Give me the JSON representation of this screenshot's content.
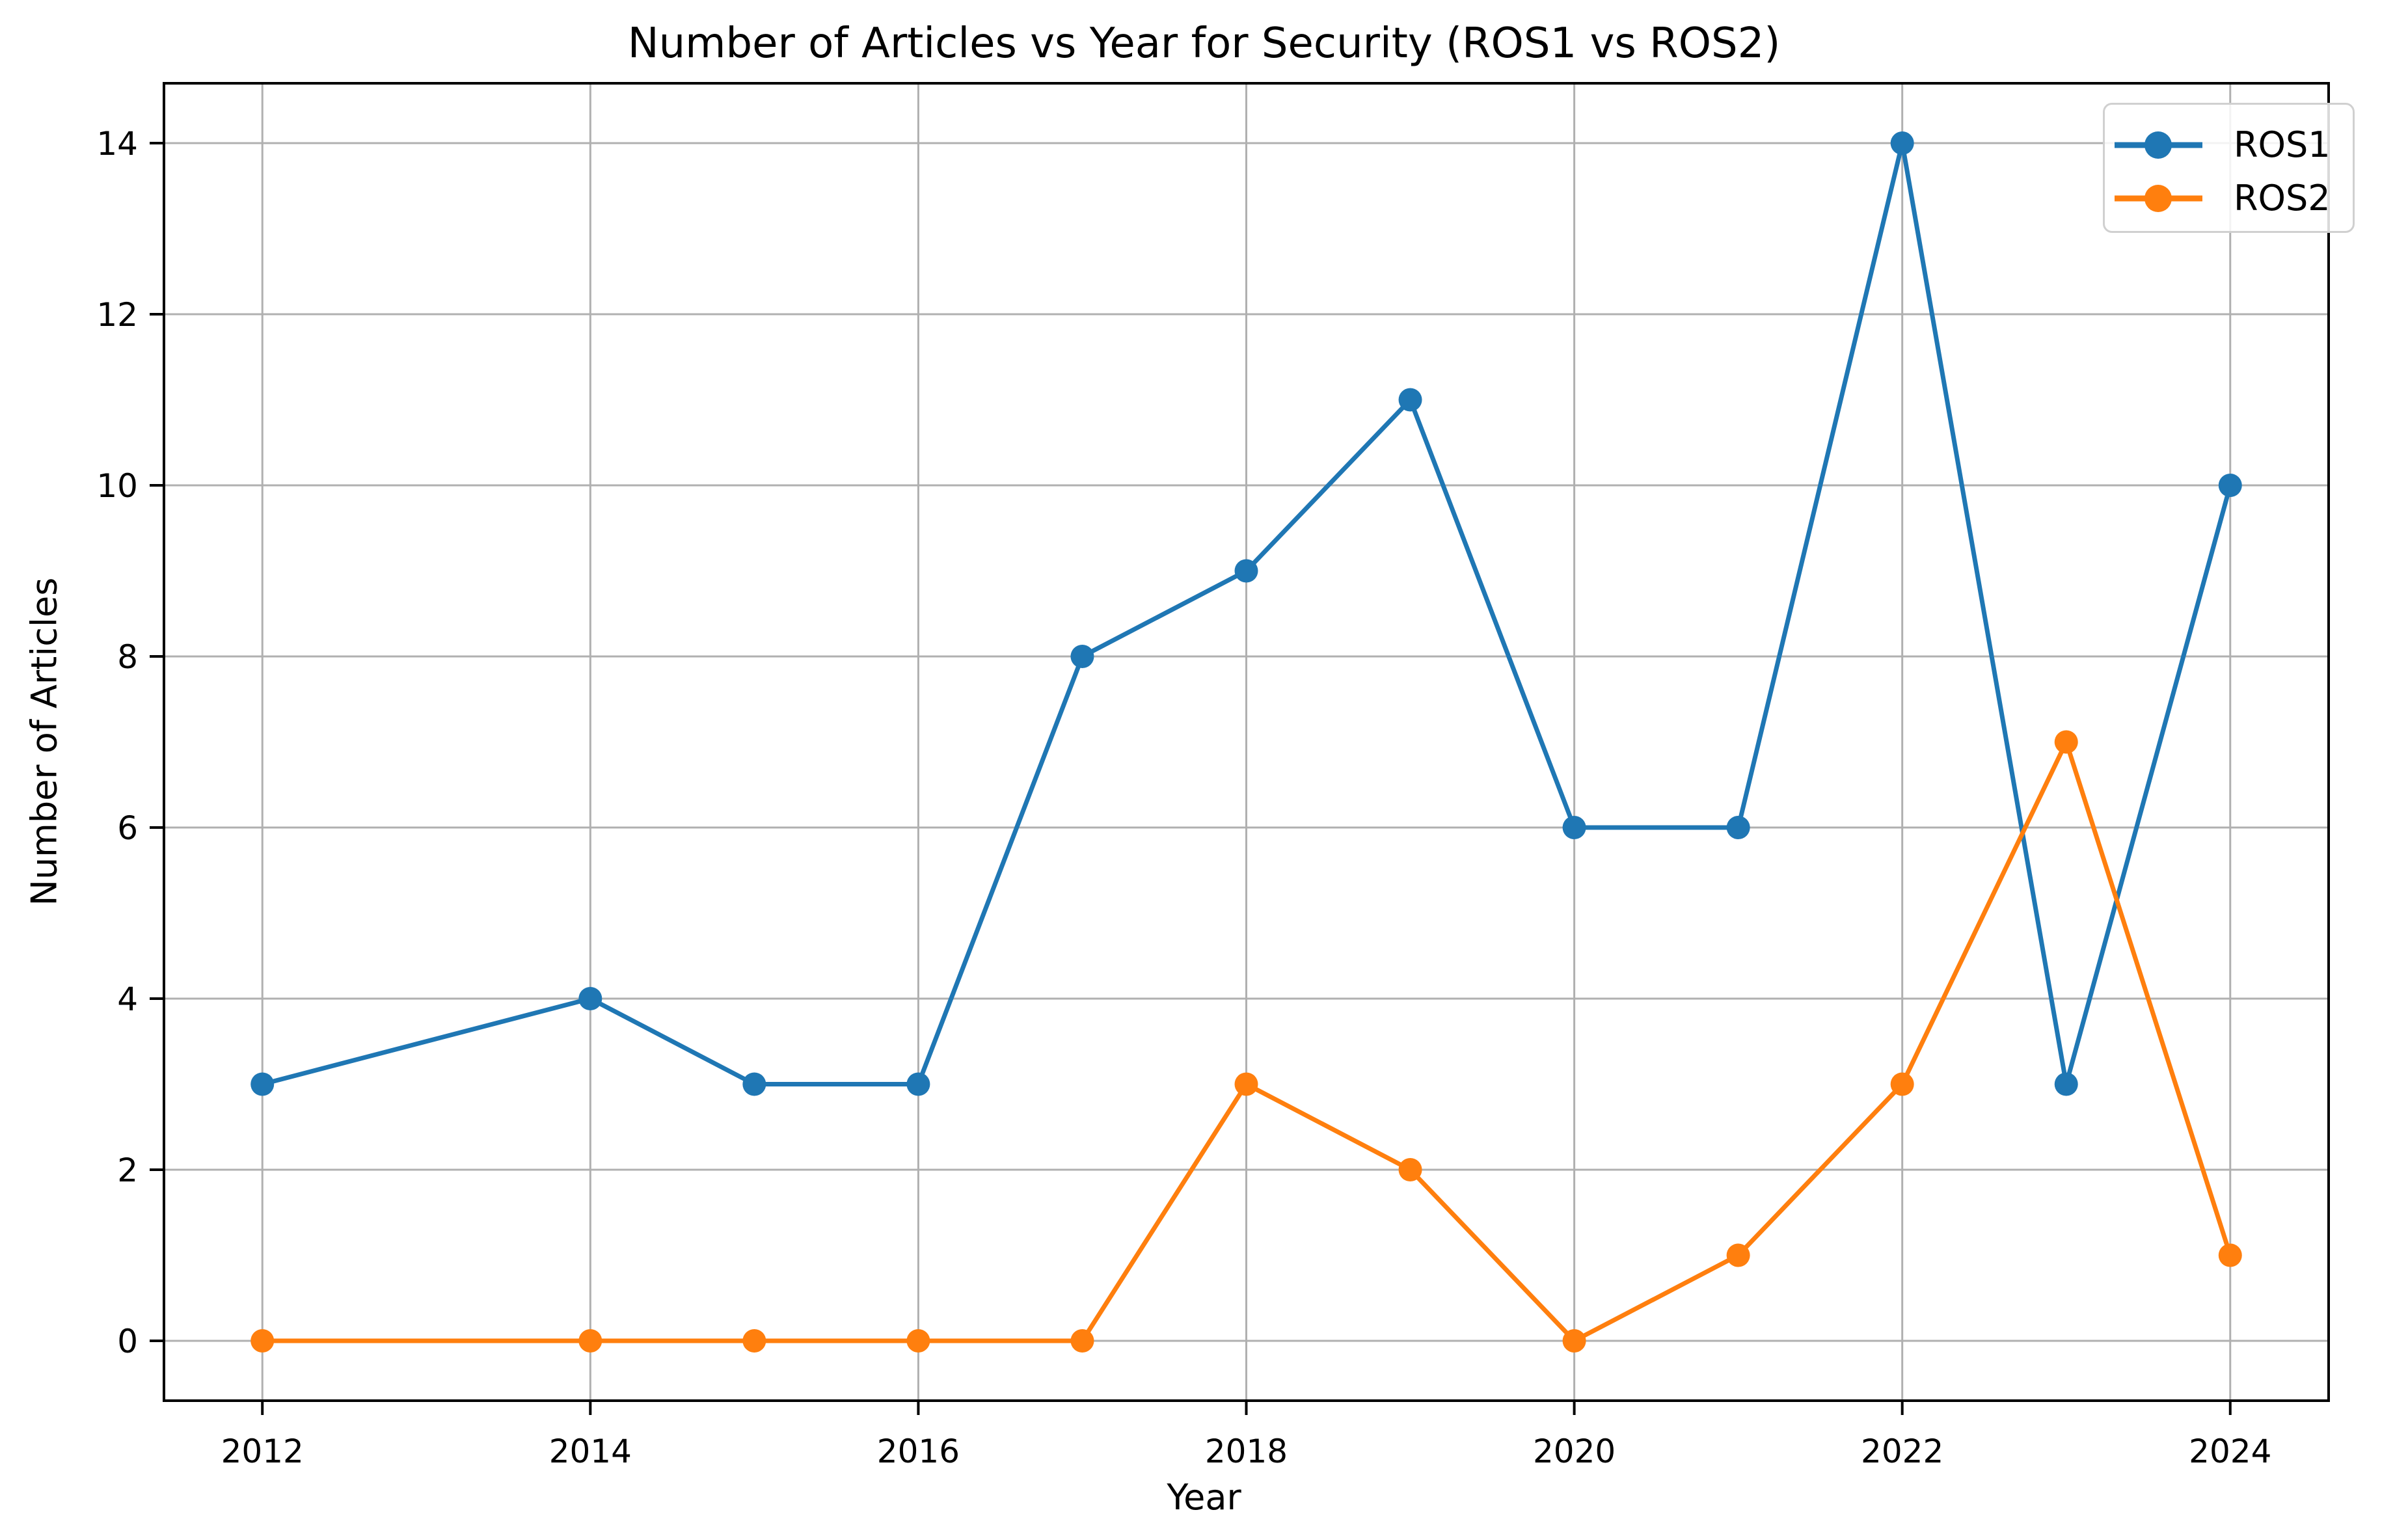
{
  "chart_data": {
    "type": "line",
    "title": "Number of Articles vs Year for Security (ROS1 vs ROS2)",
    "xlabel": "Year",
    "ylabel": "Number of Articles",
    "x": [
      2012,
      2014,
      2015,
      2016,
      2017,
      2018,
      2019,
      2020,
      2021,
      2022,
      2023,
      2024
    ],
    "series": [
      {
        "name": "ROS1",
        "color": "#1f77b4",
        "marker": "circle",
        "values": [
          3,
          4,
          3,
          3,
          8,
          9,
          11,
          6,
          6,
          14,
          3,
          10
        ]
      },
      {
        "name": "ROS2",
        "color": "#ff7f0e",
        "marker": "circle",
        "values": [
          0,
          0,
          0,
          0,
          0,
          3,
          2,
          0,
          1,
          3,
          7,
          1
        ]
      }
    ],
    "xticks": [
      2012,
      2014,
      2016,
      2018,
      2020,
      2022,
      2024
    ],
    "yticks": [
      0,
      2,
      4,
      6,
      8,
      10,
      12,
      14
    ],
    "xlim": [
      2011.4,
      2024.6
    ],
    "ylim": [
      -0.7,
      14.7
    ],
    "grid": true,
    "legend_position": "upper right"
  },
  "labels": {
    "title": "Number of Articles vs Year for Security (ROS1 vs ROS2)",
    "xlabel": "Year",
    "ylabel": "Number of Articles"
  },
  "legend": {
    "items": [
      {
        "label": "ROS1",
        "color": "#1f77b4"
      },
      {
        "label": "ROS2",
        "color": "#ff7f0e"
      }
    ]
  },
  "style": {
    "grid_color": "#b0b0b0",
    "axis_color": "#000000"
  }
}
